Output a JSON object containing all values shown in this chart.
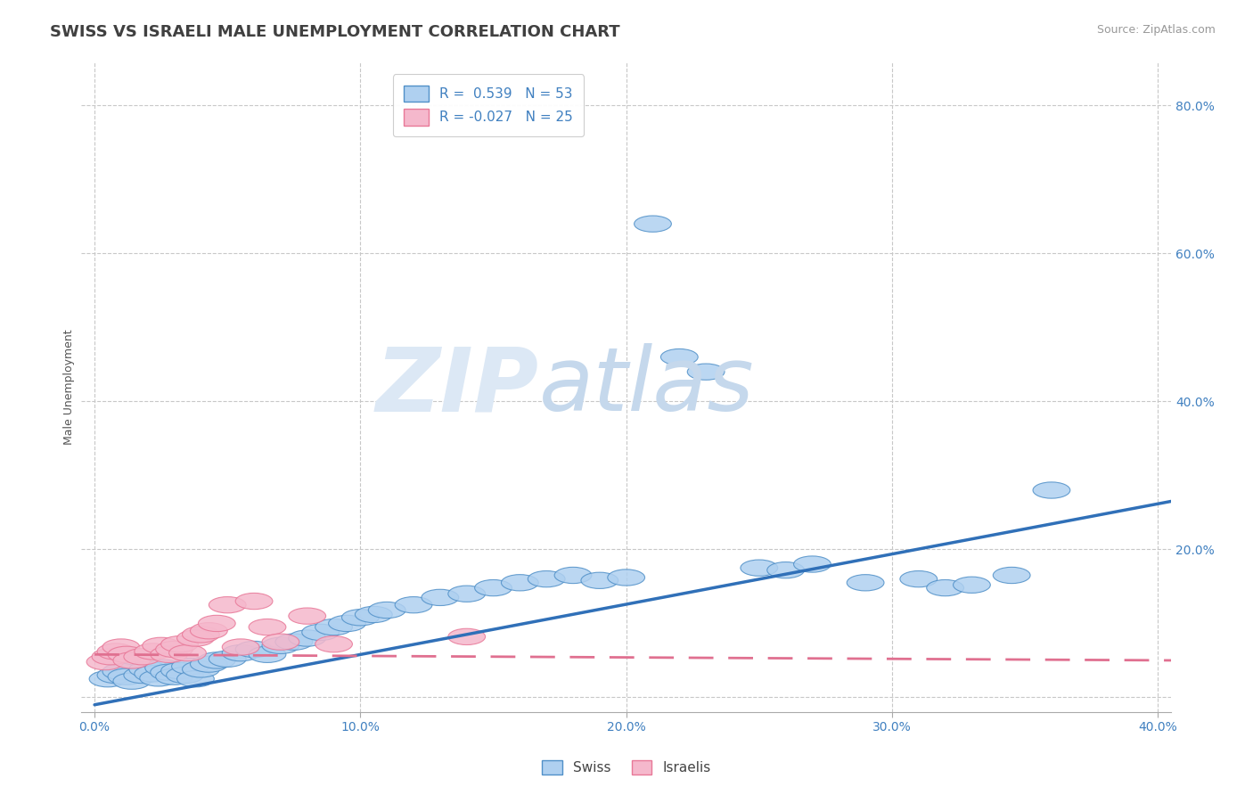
{
  "title": "SWISS VS ISRAELI MALE UNEMPLOYMENT CORRELATION CHART",
  "source": "Source: ZipAtlas.com",
  "xlabel": "",
  "ylabel": "Male Unemployment",
  "xlim": [
    -0.005,
    0.405
  ],
  "ylim": [
    -0.02,
    0.86
  ],
  "xticks": [
    0.0,
    0.1,
    0.2,
    0.3,
    0.4
  ],
  "yticks": [
    0.0,
    0.2,
    0.4,
    0.6,
    0.8
  ],
  "xticklabels": [
    "0.0%",
    "10.0%",
    "20.0%",
    "30.0%",
    "40.0%"
  ],
  "yticklabels": [
    "",
    "20.0%",
    "40.0%",
    "60.0%",
    "80.0%"
  ],
  "swiss_color": "#afd0f0",
  "israeli_color": "#f5b8cc",
  "swiss_edge_color": "#5090c8",
  "israeli_edge_color": "#e87898",
  "swiss_line_color": "#3070b8",
  "israeli_line_color": "#e07090",
  "r_swiss": 0.539,
  "n_swiss": 53,
  "r_israeli": -0.027,
  "n_israeli": 25,
  "legend_label_swiss": "Swiss",
  "legend_label_israeli": "Israelis",
  "swiss_x": [
    0.005,
    0.008,
    0.01,
    0.012,
    0.014,
    0.018,
    0.02,
    0.022,
    0.024,
    0.026,
    0.028,
    0.03,
    0.032,
    0.034,
    0.036,
    0.038,
    0.04,
    0.043,
    0.046,
    0.05,
    0.055,
    0.06,
    0.065,
    0.07,
    0.075,
    0.08,
    0.085,
    0.09,
    0.095,
    0.1,
    0.105,
    0.11,
    0.12,
    0.13,
    0.14,
    0.15,
    0.16,
    0.17,
    0.18,
    0.19,
    0.2,
    0.21,
    0.22,
    0.23,
    0.25,
    0.26,
    0.27,
    0.29,
    0.31,
    0.32,
    0.33,
    0.345,
    0.36
  ],
  "swiss_y": [
    0.025,
    0.03,
    0.035,
    0.028,
    0.022,
    0.03,
    0.038,
    0.032,
    0.026,
    0.04,
    0.034,
    0.028,
    0.036,
    0.03,
    0.042,
    0.025,
    0.038,
    0.045,
    0.05,
    0.052,
    0.06,
    0.065,
    0.058,
    0.07,
    0.075,
    0.08,
    0.088,
    0.095,
    0.1,
    0.108,
    0.112,
    0.118,
    0.125,
    0.135,
    0.14,
    0.148,
    0.155,
    0.16,
    0.165,
    0.158,
    0.162,
    0.64,
    0.46,
    0.44,
    0.175,
    0.172,
    0.18,
    0.155,
    0.16,
    0.148,
    0.152,
    0.165,
    0.28
  ],
  "israeli_x": [
    0.004,
    0.006,
    0.008,
    0.01,
    0.012,
    0.014,
    0.018,
    0.022,
    0.025,
    0.028,
    0.03,
    0.032,
    0.035,
    0.038,
    0.04,
    0.043,
    0.046,
    0.05,
    0.055,
    0.06,
    0.065,
    0.07,
    0.08,
    0.09,
    0.14
  ],
  "israeli_y": [
    0.048,
    0.055,
    0.062,
    0.068,
    0.058,
    0.05,
    0.055,
    0.062,
    0.07,
    0.058,
    0.065,
    0.072,
    0.06,
    0.08,
    0.085,
    0.09,
    0.1,
    0.125,
    0.068,
    0.13,
    0.095,
    0.075,
    0.11,
    0.072,
    0.082
  ],
  "swiss_line_x0": 0.0,
  "swiss_line_y0": -0.01,
  "swiss_line_x1": 0.405,
  "swiss_line_y1": 0.265,
  "israeli_line_x0": 0.0,
  "israeli_line_y0": 0.058,
  "israeli_line_x1": 0.405,
  "israeli_line_y1": 0.05,
  "title_fontsize": 13,
  "axis_label_fontsize": 9,
  "tick_fontsize": 10,
  "legend_fontsize": 11,
  "background_color": "#ffffff",
  "grid_color": "#c8c8c8"
}
